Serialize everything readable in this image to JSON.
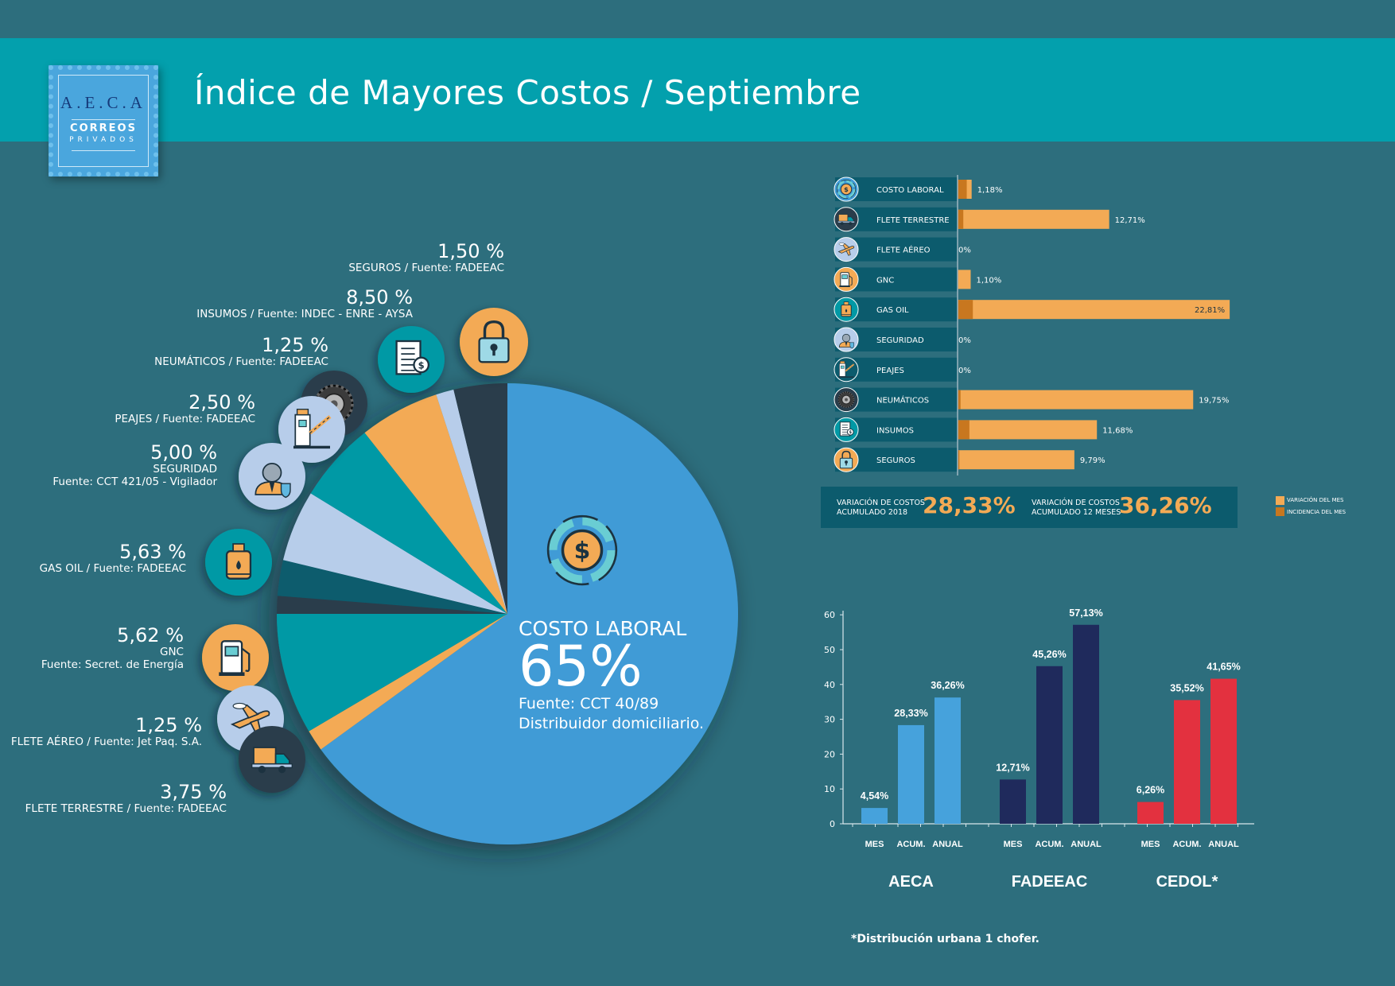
{
  "header": {
    "title": "Índice de Mayores Costos  / Septiembre"
  },
  "logo": {
    "line1": "A.E.C.A",
    "line2": "CORREOS",
    "line3": "PRIVADOS"
  },
  "colors": {
    "background": "#2d6e7d",
    "banner": "#03a0ad",
    "blue": "#3f9bd6",
    "teal": "#0299a5",
    "orange": "#f3aa55",
    "dark_orange": "#c8771f",
    "light_blue": "#b7cdea",
    "dark_teal": "#0c5b6d",
    "dark_slate": "#2a3d4b",
    "navy": "#1f2a5c",
    "red": "#e3313f",
    "white": "#ffffff"
  },
  "pie": {
    "center": {
      "name": "COSTO LABORAL",
      "value": "65%",
      "source1": "Fuente: CCT 40/89",
      "source2": "Distribuidor domiciliario."
    },
    "labels": [
      {
        "pct": "1,50 %",
        "source": "SEGUROS / Fuente: FADEEAC"
      },
      {
        "pct": "8,50 %",
        "source": "INSUMOS / Fuente: INDEC - ENRE - AYSA"
      },
      {
        "pct": "1,25 %",
        "source": "NEUMÁTICOS  / Fuente: FADEEAC"
      },
      {
        "pct": "2,50 %",
        "source": "PEAJES / Fuente: FADEEAC"
      },
      {
        "pct": "5,00 %",
        "source": "SEGURIDAD",
        "source2": "Fuente: CCT 421/05 - Vigilador"
      },
      {
        "pct": "5,63 %",
        "source": "GAS OIL / Fuente: FADEEAC"
      },
      {
        "pct": "5,62 %",
        "source": "GNC",
        "source2": "Fuente: Secret. de Energía"
      },
      {
        "pct": "1,25 %",
        "source": "FLETE AÉREO / Fuente: Jet Paq. S.A."
      },
      {
        "pct": "3,75 %",
        "source": "FLETE TERRESTRE / Fuente: FADEEAC"
      }
    ]
  },
  "hbar": {
    "items": [
      {
        "label": "COSTO LABORAL",
        "value_text": "1,18%",
        "icon": "dollar-icon",
        "icon_bg": "#3f9bd6"
      },
      {
        "label": "FLETE TERRESTRE",
        "value_text": "12,71%",
        "icon": "truck-icon",
        "icon_bg": "#2a3d4b"
      },
      {
        "label": "FLETE AÉREO",
        "value_text": "0%",
        "icon": "airplane-icon",
        "icon_bg": "#b7cdea"
      },
      {
        "label": "GNC",
        "value_text": "1,10%",
        "icon": "fuel-pump-icon",
        "icon_bg": "#f3aa55"
      },
      {
        "label": "GAS OIL",
        "value_text": "22,81%",
        "icon": "fuel-can-icon",
        "icon_bg": "#0299a5"
      },
      {
        "label": "SEGURIDAD",
        "value_text": "0%",
        "icon": "security-guard-icon",
        "icon_bg": "#b7cdea"
      },
      {
        "label": "PEAJES",
        "value_text": "0%",
        "icon": "toll-barrier-icon",
        "icon_bg": "#0c5b6d"
      },
      {
        "label": "NEUMÁTICOS",
        "value_text": "19,75%",
        "icon": "tire-icon",
        "icon_bg": "#2a3d4b"
      },
      {
        "label": " INSUMOS",
        "value_text": "11,68%",
        "icon": "invoice-icon",
        "icon_bg": "#0299a5"
      },
      {
        "label": "SEGUROS",
        "value_text": "9,79%",
        "icon": "padlock-icon",
        "icon_bg": "#f3aa55"
      }
    ],
    "summary": [
      {
        "label1": "VARIACIÓN DE COSTOS",
        "label2": "ACUMULADO 2018",
        "value": "28,33%"
      },
      {
        "label1": "VARIACIÓN DE COSTOS",
        "label2": "ACUMULADO 12 MESES",
        "value": "36,26%"
      }
    ],
    "legend": [
      {
        "label": "VARIACIÓN DEL MES",
        "color": "#f3aa55"
      },
      {
        "label": "INCIDENCIA DEL MES",
        "color": "#c8771f"
      }
    ]
  },
  "chart_data": [
    {
      "type": "pie",
      "title": "Índice de Mayores Costos / Septiembre",
      "categories": [
        "COSTO LABORAL",
        "SEGUROS",
        "INSUMOS",
        "NEUMÁTICOS",
        "PEAJES",
        "SEGURIDAD",
        "GAS OIL",
        "GNC",
        "FLETE AÉREO",
        "FLETE TERRESTRE"
      ],
      "values": [
        65,
        1.5,
        8.5,
        1.25,
        2.5,
        5.0,
        5.63,
        5.62,
        1.25,
        3.75
      ],
      "colors": [
        "#3f9bd6",
        "#f3aa55",
        "#0299a5",
        "#2a3d4b",
        "#0c5b6d",
        "#b7cdea",
        "#0299a5",
        "#f3aa55",
        "#b7cdea",
        "#2a3d4b"
      ]
    },
    {
      "type": "bar",
      "orientation": "horizontal",
      "categories": [
        "COSTO LABORAL",
        "FLETE TERRESTRE",
        "FLETE AÉREO",
        "GNC",
        "GAS OIL",
        "SEGURIDAD",
        "PEAJES",
        "NEUMÁTICOS",
        "INSUMOS",
        "SEGUROS"
      ],
      "series": [
        {
          "name": "VARIACIÓN DEL MES",
          "values": [
            1.18,
            12.71,
            0,
            1.1,
            22.81,
            0,
            0,
            19.75,
            11.68,
            9.79
          ]
        },
        {
          "name": "INCIDENCIA DEL MES",
          "values": [
            0.77,
            0.48,
            0,
            0.06,
            1.28,
            0,
            0,
            0.25,
            0.99,
            0.15
          ]
        }
      ],
      "xlim": [
        0,
        24
      ]
    },
    {
      "type": "bar",
      "groups": [
        "AECA",
        "FADEEAC",
        "CEDOL*"
      ],
      "categories": [
        "MES",
        "ACUM.",
        "ANUAL"
      ],
      "series": [
        {
          "name": "AECA",
          "values": [
            4.54,
            28.33,
            36.26
          ],
          "labels": [
            "4,54%",
            "28,33%",
            "36,26%"
          ],
          "color": "#46a2dc"
        },
        {
          "name": "FADEEAC",
          "values": [
            12.71,
            45.26,
            57.13
          ],
          "labels": [
            "12,71%",
            "45,26%",
            "57,13%"
          ],
          "color": "#1f2a5c"
        },
        {
          "name": "CEDOL*",
          "values": [
            6.26,
            35.52,
            41.65
          ],
          "labels": [
            "6,26%",
            "35,52%",
            "41,65%"
          ],
          "color": "#e3313f"
        }
      ],
      "yticks": [
        "0",
        "10",
        "20",
        "30",
        "40",
        "50",
        "60"
      ],
      "ylim": [
        0,
        60
      ],
      "footnote": "*Distribución urbana 1 chofer."
    }
  ]
}
